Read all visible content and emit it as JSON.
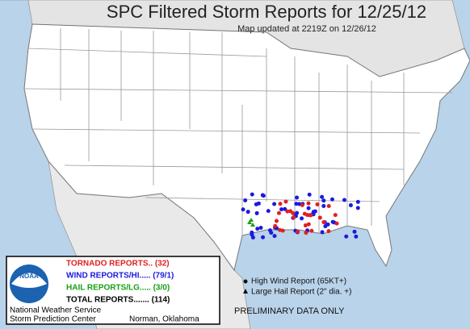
{
  "header": {
    "title": "SPC Filtered Storm Reports for 12/25/12",
    "subtitle": "Map updated at 2219Z on 12/26/12"
  },
  "legend": {
    "logo": "NOAA",
    "tornado": "TORNADO REPORTS.. (32)",
    "wind": "WIND REPORTS/HI..... (79/1)",
    "hail": "HAIL REPORTS/LG..... (3/0)",
    "total": "TOTAL REPORTS....... (114)",
    "agency": "National Weather Service",
    "center": "Storm Prediction Center",
    "location": "Norman, Oklahoma"
  },
  "key": {
    "high_wind": "High Wind Report (65KT+)",
    "large_hail": "Large Hail Report (2\" dia. +)"
  },
  "footer": "PRELIMINARY DATA ONLY"
}
